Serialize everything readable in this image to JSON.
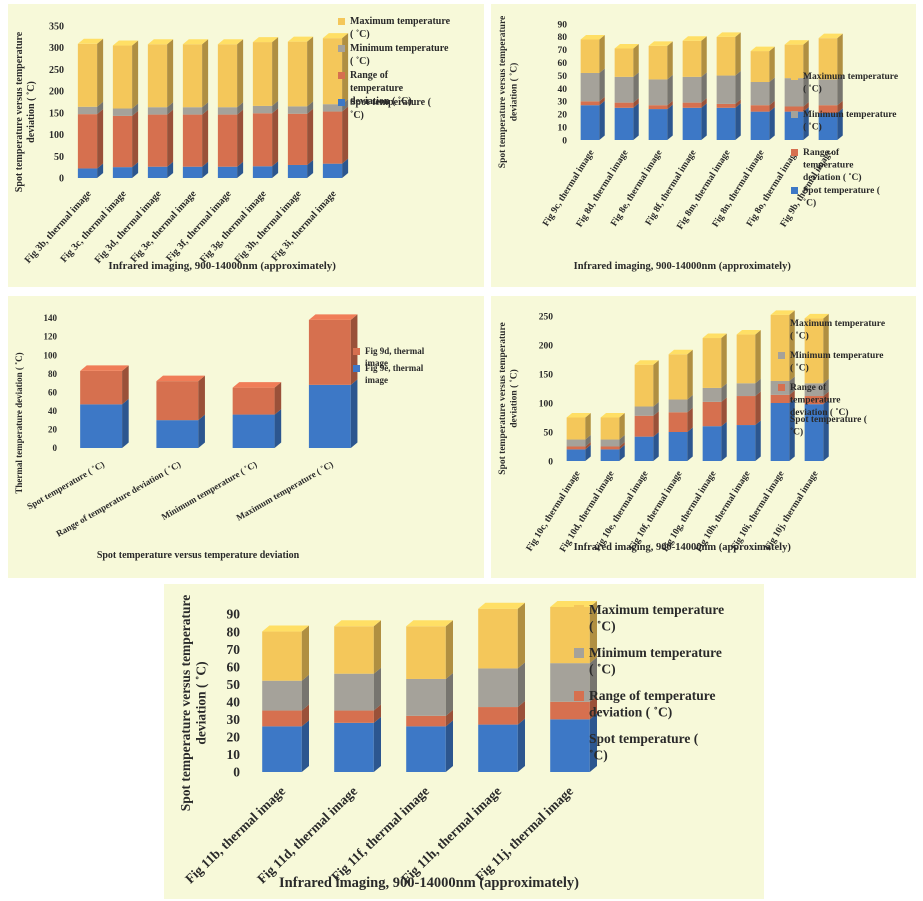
{
  "colors": {
    "spot": "#3d78c6",
    "range": "#d6704f",
    "minimum": "#a5a29a",
    "maximum": "#f4c75a",
    "panel_background": "#f7f9d9"
  },
  "chart_data": [
    {
      "type": "bar",
      "stacked": true,
      "render": {
        "plot": [
          62,
          22,
          280,
          152
        ],
        "depth": 10,
        "fs": 10
      },
      "ylabel": "Spot temperature versus temperature deviation ( ˚C)",
      "xlabel": "Infrared imaging, 900-14000nm (approximately)",
      "ylim": [
        0,
        350
      ],
      "yticks": [
        "0",
        "50",
        "100",
        "150",
        "200",
        "250",
        "300",
        "350"
      ],
      "legend_position": "right",
      "categories": [
        "Fig 3b, thermal image",
        "Fig 3c, thermal image",
        "Fig 3d, thermal image",
        "Fig 3e, thermal image",
        "Fig 3f, thermal image",
        "Fig 3g, thermal image",
        "Fig 3h, thermal image",
        "Fig 3i, thermal image"
      ],
      "series": [
        {
          "name": "Spot temperature ( ˚C)",
          "key": "spot",
          "values": [
            22,
            25,
            26,
            26,
            26,
            27,
            30,
            33
          ]
        },
        {
          "name": "Range of temperature deviation ( ˚C)",
          "key": "range",
          "values": [
            125,
            118,
            120,
            120,
            120,
            122,
            118,
            120
          ]
        },
        {
          "name": "Minimum temperature ( ˚C)",
          "key": "minimum",
          "values": [
            17,
            17,
            17,
            17,
            17,
            17,
            17,
            17
          ]
        },
        {
          "name": "Maximum temperature ( ˚C)",
          "key": "maximum",
          "values": [
            145,
            145,
            145,
            145,
            145,
            147,
            149,
            152
          ]
        }
      ],
      "legend_order": [
        3,
        2,
        1,
        0
      ]
    },
    {
      "type": "bar",
      "stacked": true,
      "render": {
        "plot": [
          82,
          20,
          272,
          116
        ],
        "depth": 9,
        "fs": 9.5
      },
      "ylabel": "Spot temperature versus temperature deviation ( ˚C)",
      "xlabel": "Infrared imaging, 900-14000nm (approximately)",
      "ylim": [
        0,
        90
      ],
      "yticks": [
        "0",
        "10",
        "20",
        "30",
        "40",
        "50",
        "60",
        "70",
        "80",
        "90"
      ],
      "legend_position": "right",
      "categories": [
        "Fig 9c, thermal image",
        "Fig 8d, thermal image",
        "Fig 8e, thermal image",
        "Fig 8f, thermal image",
        "Fig 8m, thermal image",
        "Fig 8n, thermal image",
        "Fig 8o, thermal image",
        "Fig 9b, thermal image"
      ],
      "series": [
        {
          "name": "Spot temperature ( ˚C)",
          "key": "spot",
          "values": [
            27,
            25,
            24,
            25,
            25,
            22,
            22,
            21
          ]
        },
        {
          "name": "Range of temperature deviation ( ˚C)",
          "key": "range",
          "values": [
            3,
            4,
            3,
            4,
            3,
            5,
            4,
            6
          ]
        },
        {
          "name": "Minimum temperature ( ˚C)",
          "key": "minimum",
          "values": [
            22,
            20,
            20,
            20,
            22,
            18,
            22,
            20
          ]
        },
        {
          "name": "Maximum temperature ( ˚C)",
          "key": "maximum",
          "values": [
            26,
            22,
            26,
            28,
            30,
            24,
            26,
            32
          ]
        }
      ],
      "legend_order": [
        3,
        2,
        1,
        0
      ]
    },
    {
      "type": "bar",
      "stacked": true,
      "render": {
        "plot": [
          55,
          22,
          305,
          130
        ],
        "depth": 11,
        "fs": 9
      },
      "ylabel": "Thermal temperature deviation ( ˚C)",
      "xlabel": "Spot temperature versus temperature deviation",
      "ylim": [
        0,
        140
      ],
      "yticks": [
        "0",
        "20",
        "40",
        "60",
        "80",
        "100",
        "120",
        "140"
      ],
      "legend_position": "right",
      "categories": [
        "Spot temperature ( ˚C)",
        "Range of temperature deviation ( ˚C)",
        "Minimum temperature ( ˚C)",
        "Maximum temperature ( ˚C)"
      ],
      "series": [
        {
          "name": "Fig 9e, thermal image",
          "key": "spot",
          "values": [
            47,
            30,
            36,
            68
          ]
        },
        {
          "name": "Fig 9d, thermal image",
          "key": "range",
          "values": [
            36,
            42,
            29,
            70
          ]
        }
      ],
      "legend_order": [
        1,
        0
      ]
    },
    {
      "type": "bar",
      "stacked": true,
      "render": {
        "plot": [
          68,
          20,
          272,
          145
        ],
        "depth": 9,
        "fs": 9.5
      },
      "ylabel": "Spot temperature versus temperature deviation ( ˚C)",
      "xlabel": "Infrared imaging, 900-14000nm (approximately)",
      "ylim": [
        0,
        250
      ],
      "yticks": [
        "0",
        "50",
        "100",
        "150",
        "200",
        "250"
      ],
      "legend_position": "right",
      "categories": [
        "Fig 10c, thermal image",
        "Fig 10d, thermal image",
        "Fig 10e, thermal image",
        "Fig 10f, thermal image",
        "Fig 10g, thermal image",
        "Fig 10h, thermal image",
        "Fig 10i, thermal image",
        "Fig 10j, thermal image"
      ],
      "series": [
        {
          "name": "Spot temperature ( ˚C)",
          "key": "spot",
          "values": [
            20,
            20,
            42,
            50,
            60,
            62,
            100,
            98
          ]
        },
        {
          "name": "Range of temperature deviation ( ˚C)",
          "key": "range",
          "values": [
            5,
            5,
            36,
            34,
            42,
            50,
            14,
            14
          ]
        },
        {
          "name": "Minimum temperature ( ˚C)",
          "key": "minimum",
          "values": [
            12,
            12,
            16,
            22,
            24,
            22,
            24,
            22
          ]
        },
        {
          "name": "Maximum temperature ( ˚C)",
          "key": "maximum",
          "values": [
            38,
            38,
            72,
            78,
            86,
            84,
            114,
            112
          ]
        }
      ],
      "legend_order": [
        3,
        2,
        1,
        0
      ]
    },
    {
      "type": "bar",
      "stacked": true,
      "render": {
        "plot": [
          82,
          30,
          360,
          158
        ],
        "depth": 12,
        "fs": 13.5
      },
      "ylabel": "Spot temperature versus temperature deviation ( ˚C)",
      "xlabel": "Infrared imaging, 900-14000nm (approximately)",
      "ylim": [
        0,
        90
      ],
      "yticks": [
        "0",
        "10",
        "20",
        "30",
        "40",
        "50",
        "60",
        "70",
        "80",
        "90"
      ],
      "legend_position": "right",
      "categories": [
        "Fig 11b, thermal image",
        "Fig 11d, thermal image",
        "Fig 11f, thermal image",
        "Fig 11h, thermal image",
        "Fig 11j, thermal image"
      ],
      "series": [
        {
          "name": "Spot temperature ( ˚C)",
          "key": "spot",
          "values": [
            26,
            28,
            26,
            27,
            30
          ]
        },
        {
          "name": "Range of temperature deviation ( ˚C)",
          "key": "range",
          "values": [
            9,
            7,
            6,
            10,
            10
          ]
        },
        {
          "name": "Minimum temperature ( ˚C)",
          "key": "minimum",
          "values": [
            17,
            21,
            21,
            22,
            22
          ]
        },
        {
          "name": "Maximum temperature ( ˚C)",
          "key": "maximum",
          "values": [
            28,
            27,
            30,
            34,
            32
          ]
        }
      ],
      "legend_order": [
        3,
        2,
        1,
        0
      ]
    }
  ]
}
